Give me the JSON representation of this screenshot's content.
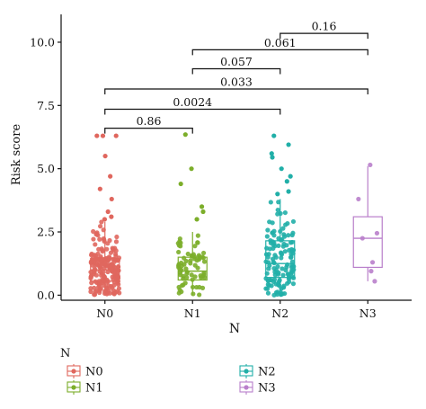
{
  "chart_data": {
    "type": "box",
    "xlabel": "N",
    "ylabel": "Risk score",
    "categories": [
      "N0",
      "N1",
      "N2",
      "N3"
    ],
    "ylim": [
      -0.2,
      11.1
    ],
    "yticks": [
      "0.0",
      "2.5",
      "5.0",
      "7.5",
      "10.0"
    ],
    "ytick_values": [
      0,
      2.5,
      5,
      7.5,
      10
    ],
    "grid": false,
    "colors": {
      "N0": "#E0675E",
      "N1": "#7CAE2A",
      "N2": "#21AFA8",
      "N3": "#B97FCB"
    },
    "boxes": [
      {
        "group": "N0",
        "whisker_low": 0.0,
        "q1": 0.55,
        "median": 1.0,
        "q3": 1.45,
        "whisker_high": 2.9
      },
      {
        "group": "N1",
        "whisker_low": 0.0,
        "q1": 0.6,
        "median": 0.95,
        "q3": 1.5,
        "whisker_high": 2.5
      },
      {
        "group": "N2",
        "whisker_low": 0.0,
        "q1": 0.7,
        "median": 1.25,
        "q3": 2.15,
        "whisker_high": 3.8
      },
      {
        "group": "N3",
        "whisker_low": 0.55,
        "q1": 1.1,
        "median": 2.25,
        "q3": 3.1,
        "whisker_high": 5.1
      }
    ],
    "outliers": [
      {
        "group": "N0",
        "values": [
          6.3,
          6.3,
          6.3,
          5.5,
          4.7,
          4.2,
          3.8,
          3.3,
          3.1,
          3.0
        ]
      },
      {
        "group": "N1",
        "values": [
          6.35,
          5.0,
          4.4,
          3.5,
          3.3,
          3.0
        ]
      },
      {
        "group": "N2",
        "values": [
          6.3,
          5.95,
          5.6,
          5.45,
          5.0,
          4.7,
          4.5,
          4.1,
          4.0
        ]
      },
      {
        "group": "N3",
        "values": []
      }
    ],
    "points": [
      {
        "group": "N0",
        "count": 200
      },
      {
        "group": "N1",
        "count": 70
      },
      {
        "group": "N2",
        "count": 130
      },
      {
        "group": "N3",
        "values": [
          5.15,
          3.8,
          2.45,
          2.25,
          1.3,
          0.95,
          0.55
        ]
      }
    ],
    "comparisons": [
      {
        "from": "N2",
        "to": "N3",
        "label": "0.16",
        "y": 10.35
      },
      {
        "from": "N1",
        "to": "N3",
        "label": "0.061",
        "y": 9.7
      },
      {
        "from": "N1",
        "to": "N2",
        "label": "0.057",
        "y": 8.95
      },
      {
        "from": "N0",
        "to": "N3",
        "label": "0.033",
        "y": 8.15
      },
      {
        "from": "N0",
        "to": "N2",
        "label": "0.0024",
        "y": 7.35
      },
      {
        "from": "N0",
        "to": "N1",
        "label": "0.86",
        "y": 6.6
      }
    ],
    "legend": {
      "title": "N",
      "position": "bottom-left",
      "entries": [
        "N0",
        "N1",
        "N2",
        "N3"
      ]
    }
  }
}
